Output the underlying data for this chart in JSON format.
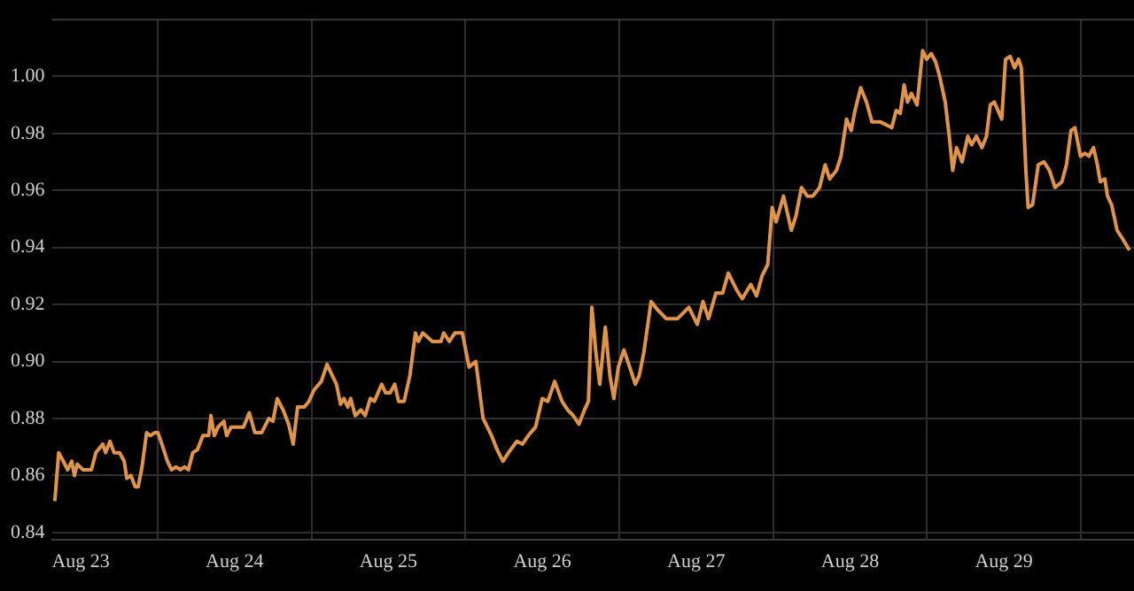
{
  "chart_data": {
    "type": "line",
    "color": "#e0944a",
    "grid": true,
    "xlim": [
      "--08-22T19:30",
      "--08-29T20:18"
    ],
    "ylim": [
      0.8376,
      1.0202
    ],
    "xticks": [
      {
        "value": "--08-23",
        "label": "Aug 23"
      },
      {
        "value": "--08-23T12:00",
        "label": null
      },
      {
        "value": "--08-24",
        "label": "Aug 24"
      },
      {
        "value": "--08-24T12:00",
        "label": null
      },
      {
        "value": "--08-25",
        "label": "Aug 25"
      },
      {
        "value": "--08-25T12:00",
        "label": null
      },
      {
        "value": "--08-26",
        "label": "Aug 26"
      },
      {
        "value": "--08-26T12:00",
        "label": null
      },
      {
        "value": "--08-27",
        "label": "Aug 27"
      },
      {
        "value": "--08-27T12:00",
        "label": null
      },
      {
        "value": "--08-28",
        "label": "Aug 28"
      },
      {
        "value": "--08-28T12:00",
        "label": null
      },
      {
        "value": "--08-29",
        "label": "Aug 29"
      },
      {
        "value": "--08-29T12:00",
        "label": null
      }
    ],
    "yticks": [
      0.84,
      0.86,
      0.88,
      {
        "value": 0.9,
        "label": "0.90"
      },
      0.92,
      0.94,
      0.96,
      0.98,
      {
        "value": 1,
        "label": "1.00"
      }
    ],
    "x": [
      "--08-22T19:58",
      "--08-22T20:34",
      "--08-22T21:17",
      "--08-22T21:58",
      "--08-22T22:36",
      "--08-22T23:01",
      "--08-22T23:28",
      "--08-23T00:20",
      "--08-23T00:59",
      "--08-23T01:40",
      "--08-23T02:22",
      "--08-23T03:26",
      "--08-23T03:53",
      "--08-23T04:34",
      "--08-23T05:12",
      "--08-23T06:04",
      "--08-23T06:47",
      "--08-23T07:12",
      "--08-23T07:50",
      "--08-23T08:31",
      "--08-23T08:58",
      "--08-23T09:34",
      "--08-23T10:17",
      "--08-23T10:53",
      "--08-23T11:32",
      "--08-23T12:03",
      "--08-23T12:40",
      "--08-23T13:32",
      "--08-23T14:10",
      "--08-23T14:51",
      "--08-23T15:34",
      "--08-23T16:10",
      "--08-23T16:48",
      "--08-23T17:29",
      "--08-23T18:12",
      "--08-23T19:04",
      "--08-23T19:58",
      "--08-23T20:19",
      "--08-23T20:50",
      "--08-23T21:26",
      "--08-23T22:20",
      "--08-23T22:46",
      "--08-23T23:28",
      "--08-24T00:32",
      "--08-24T01:24",
      "--08-24T02:18",
      "--08-24T03:10",
      "--08-24T04:13",
      "--08-24T05:21",
      "--08-24T05:59",
      "--08-24T06:40",
      "--08-24T07:34",
      "--08-24T08:26",
      "--08-24T09:09",
      "--08-24T09:50",
      "--08-24T10:53",
      "--08-24T11:36",
      "--08-24T12:24",
      "--08-24T13:32",
      "--08-24T14:26",
      "--08-24T15:02",
      "--08-24T15:54",
      "--08-24T16:32",
      "--08-24T17:04",
      "--08-24T17:40",
      "--08-24T18:07",
      "--08-24T18:49",
      "--08-24T19:42",
      "--08-24T20:23",
      "--08-24T21:11",
      "--08-24T21:49",
      "--08-24T22:57",
      "--08-24T23:33",
      "--08-25T00:16",
      "--08-25T00:59",
      "--08-25T01:35",
      "--08-25T02:27",
      "--08-25T03:21",
      "--08-25T04:13",
      "--08-25T04:40",
      "--08-25T05:21",
      "--08-25T06:52",
      "--08-25T08:11",
      "--08-25T08:38",
      "--08-25T09:30",
      "--08-25T10:22",
      "--08-25T11:32",
      "--08-25T12:35",
      "--08-25T13:38",
      "--08-25T14:46",
      "--08-25T16:05",
      "--08-25T16:58",
      "--08-25T17:52",
      "--08-25T18:44",
      "--08-25T20:02",
      "--08-25T20:55",
      "--08-25T21:49",
      "--08-25T22:57",
      "--08-26T00:00",
      "--08-26T00:52",
      "--08-26T01:56",
      "--08-26T03:05",
      "--08-26T03:58",
      "--08-26T04:50",
      "--08-26T05:43",
      "--08-26T06:35",
      "--08-26T07:12",
      "--08-26T07:44",
      "--08-26T08:22",
      "--08-26T08:58",
      "--08-26T09:50",
      "--08-26T10:33",
      "--08-26T11:10",
      "--08-26T11:52",
      "--08-26T12:44",
      "--08-26T13:38",
      "--08-26T14:31",
      "--08-26T15:07",
      "--08-26T15:50",
      "--08-26T16:58",
      "--08-26T18:01",
      "--08-26T19:20",
      "--08-26T21:06",
      "--08-26T22:52",
      "--08-27T00:11",
      "--08-27T01:04",
      "--08-27T01:56",
      "--08-27T03:05",
      "--08-27T04:08",
      "--08-27T05:01",
      "--08-27T06:20",
      "--08-27T07:12",
      "--08-27T08:31",
      "--08-27T09:25",
      "--08-27T10:17",
      "--08-27T11:10",
      "--08-27T11:52",
      "--08-27T12:29",
      "--08-27T13:38",
      "--08-27T14:51",
      "--08-27T15:34",
      "--08-27T16:26",
      "--08-27T17:20",
      "--08-27T18:12",
      "--08-27T19:15",
      "--08-27T20:07",
      "--08-27T20:50",
      "--08-27T21:53",
      "--08-27T22:36",
      "--08-27T23:28",
      "--08-28T00:11",
      "--08-28T00:47",
      "--08-28T01:40",
      "--08-28T02:34",
      "--08-28T03:26",
      "--08-28T04:45",
      "--08-28T06:31",
      "--08-28T07:12",
      "--08-28T07:50",
      "--08-28T08:26",
      "--08-28T08:58",
      "--08-28T09:35",
      "--08-28T10:28",
      "--08-28T11:20",
      "--08-28T11:57",
      "--08-28T12:40",
      "--08-28T13:22",
      "--08-28T13:59",
      "--08-28T14:51",
      "--08-28T15:29",
      "--08-28T16:01",
      "--08-28T16:37",
      "--08-28T17:29",
      "--08-28T18:23",
      "--08-28T18:59",
      "--08-28T19:42",
      "--08-28T20:35",
      "--08-28T21:17",
      "--08-28T21:53",
      "--08-28T22:30",
      "--08-28T23:40",
      "--08-29T00:16",
      "--08-29T00:59",
      "--08-29T01:40",
      "--08-29T02:18",
      "--08-29T02:44",
      "--08-29T03:26",
      "--08-29T03:47",
      "--08-29T04:29",
      "--08-29T05:22",
      "--08-29T06:15",
      "--08-29T07:07",
      "--08-29T07:59",
      "--08-29T09:03",
      "--08-29T09:46",
      "--08-29T10:28",
      "--08-29T11:05",
      "--08-29T11:57",
      "--08-29T12:40",
      "--08-29T13:16",
      "--08-29T13:59",
      "--08-29T14:35",
      "--08-29T15:02",
      "--08-29T15:45",
      "--08-29T16:10",
      "--08-29T16:48",
      "--08-29T17:40",
      "--08-29T18:32",
      "--08-29T19:35"
    ],
    "values": [
      0.851,
      0.868,
      0.865,
      0.862,
      0.865,
      0.86,
      0.864,
      0.862,
      0.862,
      0.862,
      0.868,
      0.871,
      0.868,
      0.872,
      0.868,
      0.868,
      0.865,
      0.859,
      0.86,
      0.856,
      0.856,
      0.863,
      0.875,
      0.874,
      0.875,
      0.875,
      0.871,
      0.865,
      0.862,
      0.863,
      0.862,
      0.863,
      0.862,
      0.868,
      0.869,
      0.874,
      0.874,
      0.881,
      0.874,
      0.877,
      0.879,
      0.874,
      0.877,
      0.877,
      0.877,
      0.882,
      0.875,
      0.875,
      0.88,
      0.879,
      0.887,
      0.883,
      0.878,
      0.871,
      0.884,
      0.884,
      0.886,
      0.89,
      0.893,
      0.899,
      0.896,
      0.892,
      0.885,
      0.887,
      0.884,
      0.887,
      0.881,
      0.883,
      0.881,
      0.887,
      0.886,
      0.892,
      0.889,
      0.889,
      0.892,
      0.886,
      0.886,
      0.895,
      0.91,
      0.907,
      0.91,
      0.907,
      0.907,
      0.91,
      0.907,
      0.91,
      0.91,
      0.898,
      0.9,
      0.88,
      0.874,
      0.869,
      0.865,
      0.868,
      0.872,
      0.871,
      0.874,
      0.877,
      0.887,
      0.886,
      0.893,
      0.886,
      0.883,
      0.881,
      0.878,
      0.883,
      0.886,
      0.919,
      0.903,
      0.892,
      0.912,
      0.895,
      0.887,
      0.898,
      0.904,
      0.898,
      0.892,
      0.895,
      0.903,
      0.921,
      0.918,
      0.915,
      0.915,
      0.919,
      0.913,
      0.921,
      0.915,
      0.924,
      0.924,
      0.931,
      0.925,
      0.922,
      0.927,
      0.923,
      0.93,
      0.934,
      0.954,
      0.949,
      0.958,
      0.946,
      0.951,
      0.961,
      0.958,
      0.958,
      0.961,
      0.969,
      0.964,
      0.967,
      0.972,
      0.985,
      0.981,
      0.988,
      0.996,
      0.991,
      0.984,
      0.984,
      0.982,
      0.988,
      0.987,
      0.997,
      0.991,
      0.994,
      0.99,
      1.009,
      1.006,
      1.008,
      1.005,
      1,
      0.991,
      0.979,
      0.967,
      0.975,
      0.97,
      0.979,
      0.976,
      0.979,
      0.975,
      0.979,
      0.99,
      0.991,
      0.985,
      1.006,
      1.007,
      1.003,
      1.006,
      1.003,
      0.967,
      0.954,
      0.955,
      0.969,
      0.97,
      0.967,
      0.961,
      0.963,
      0.969,
      0.981,
      0.982,
      0.972,
      0.973,
      0.972,
      0.975,
      0.969,
      0.963,
      0.964,
      0.958,
      0.955,
      0.946,
      0.943,
      0.939
    ]
  }
}
